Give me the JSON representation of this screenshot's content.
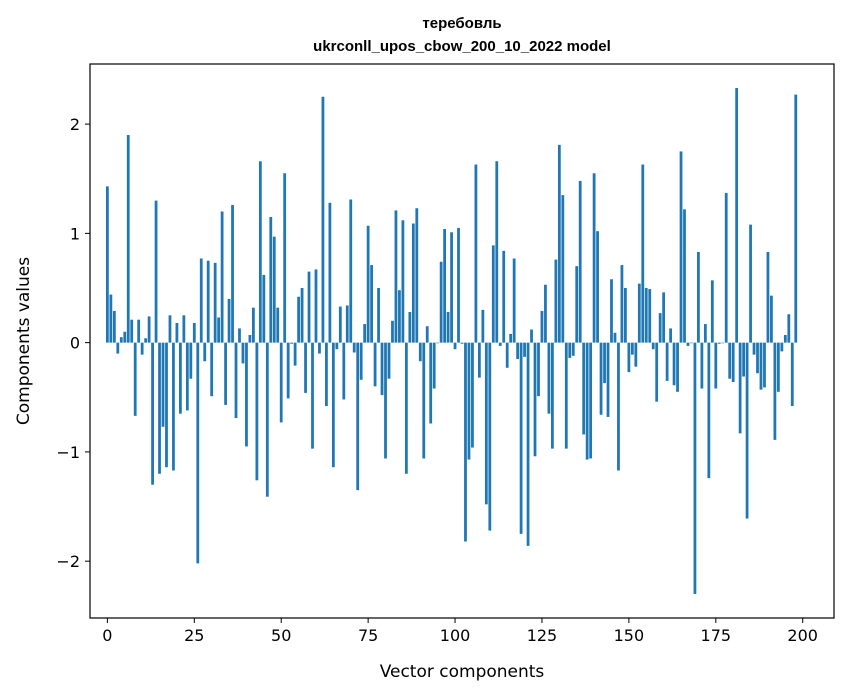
{
  "chart_data": {
    "type": "bar",
    "title": "теребовль",
    "subtitle": "ukrconll_upos_cbow_200_10_2022 model",
    "xlabel": "Vector components",
    "ylabel": "Components values",
    "xlim": [
      -5,
      209
    ],
    "ylim": [
      -2.52,
      2.55
    ],
    "xticks": [
      0,
      25,
      50,
      75,
      100,
      125,
      150,
      175,
      200
    ],
    "yticks": [
      -2,
      -1,
      0,
      1,
      2
    ],
    "ytick_labels": [
      "−2",
      "−1",
      "0",
      "1",
      "2"
    ],
    "bar_color": "#1f77b4",
    "grid": false,
    "values": [
      1.43,
      0.44,
      0.29,
      -0.1,
      0.05,
      0.1,
      1.9,
      0.21,
      -0.67,
      0.21,
      -0.11,
      0.04,
      0.24,
      -1.3,
      1.3,
      -1.2,
      -0.77,
      -1.14,
      0.25,
      -1.17,
      0.18,
      -0.65,
      0.25,
      -0.62,
      -0.33,
      0.18,
      -2.02,
      0.77,
      -0.17,
      0.75,
      -0.49,
      0.73,
      0.23,
      1.2,
      -0.57,
      0.4,
      1.26,
      -0.69,
      0.13,
      -0.19,
      -0.95,
      0.07,
      0.32,
      -1.26,
      1.66,
      0.62,
      -1.41,
      1.15,
      0.97,
      0.32,
      -0.73,
      1.55,
      -0.51,
      -0.01,
      -0.21,
      0.42,
      0.5,
      -0.46,
      0.65,
      -0.97,
      0.67,
      -0.1,
      2.25,
      -0.58,
      1.28,
      -1.14,
      -0.06,
      0.33,
      -0.52,
      0.34,
      1.31,
      -0.09,
      -1.35,
      -0.34,
      0.17,
      1.07,
      0.71,
      -0.4,
      0.5,
      -0.48,
      -1.06,
      -0.33,
      0.2,
      1.21,
      0.48,
      1.12,
      -1.2,
      0.28,
      1.09,
      1.23,
      -0.17,
      -1.06,
      0.15,
      -0.74,
      -0.42,
      0.0,
      0.74,
      1.04,
      0.28,
      1.01,
      -0.06,
      1.05,
      -0.01,
      -1.82,
      -1.07,
      -0.96,
      1.63,
      -0.32,
      0.3,
      -1.48,
      -1.72,
      0.89,
      1.66,
      -0.03,
      0.84,
      -0.23,
      0.08,
      0.77,
      -0.15,
      -1.75,
      -0.13,
      -1.86,
      0.12,
      -1.04,
      -0.49,
      0.29,
      0.53,
      -0.65,
      -0.97,
      0.76,
      1.81,
      1.35,
      -0.97,
      -0.14,
      -0.12,
      0.7,
      1.48,
      -0.84,
      -1.07,
      -1.06,
      1.55,
      1.02,
      -0.66,
      -0.37,
      -0.68,
      0.58,
      0.09,
      -1.17,
      0.71,
      0.5,
      -0.27,
      -0.11,
      -0.22,
      0.54,
      1.63,
      0.5,
      0.49,
      -0.06,
      -0.54,
      0.27,
      0.46,
      -0.35,
      0.13,
      -0.39,
      -0.45,
      1.75,
      1.22,
      -0.03,
      0.0,
      -2.3,
      0.83,
      -0.42,
      0.17,
      -1.24,
      0.57,
      -0.42,
      -0.01,
      0.0,
      1.37,
      -0.33,
      -0.36,
      2.33,
      -0.83,
      -0.31,
      -1.61,
      1.08,
      -0.11,
      -0.28,
      -0.43,
      -0.41,
      0.83,
      0.43,
      -0.89,
      -0.45,
      -0.08,
      0.07,
      0.26,
      -0.58,
      2.27
    ]
  }
}
